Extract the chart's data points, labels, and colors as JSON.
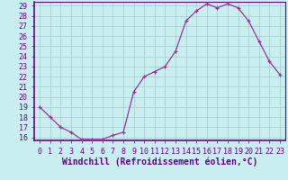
{
  "x": [
    0,
    1,
    2,
    3,
    4,
    5,
    6,
    7,
    8,
    9,
    10,
    11,
    12,
    13,
    14,
    15,
    16,
    17,
    18,
    19,
    20,
    21,
    22,
    23
  ],
  "y": [
    19,
    18,
    17,
    16.5,
    15.8,
    15.8,
    15.8,
    16.2,
    16.5,
    20.5,
    22,
    22.5,
    23,
    24.5,
    27.5,
    28.5,
    29.2,
    28.8,
    29.2,
    28.8,
    27.5,
    25.5,
    23.5,
    22.2
  ],
  "line_color": "#993399",
  "marker": "P",
  "bg_color": "#c8eef0",
  "grid_color": "#a0cccc",
  "xlabel": "Windchill (Refroidissement éolien,°C)",
  "ylabel": "",
  "ylim_min": 15.7,
  "ylim_max": 29.4,
  "xlim_min": -0.5,
  "xlim_max": 23.5,
  "yticks": [
    16,
    17,
    18,
    19,
    20,
    21,
    22,
    23,
    24,
    25,
    26,
    27,
    28,
    29
  ],
  "xticks": [
    0,
    1,
    2,
    3,
    4,
    5,
    6,
    7,
    8,
    9,
    10,
    11,
    12,
    13,
    14,
    15,
    16,
    17,
    18,
    19,
    20,
    21,
    22,
    23
  ],
  "spine_color": "#660099",
  "xlabel_color": "#660099",
  "xlabel_fontsize": 7,
  "tick_fontsize": 6,
  "marker_size": 3,
  "line_width": 0.9
}
